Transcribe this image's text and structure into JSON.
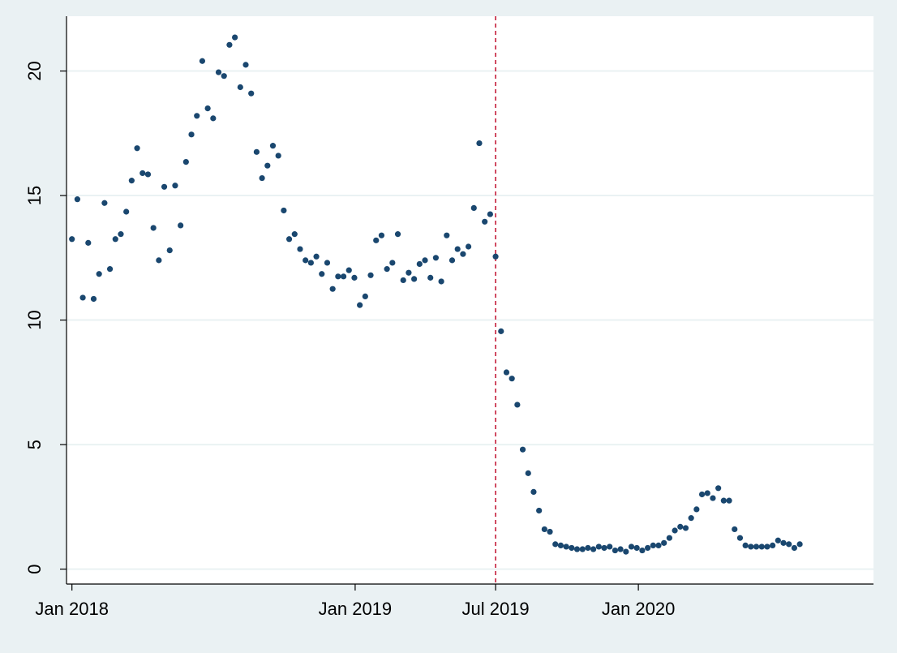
{
  "chart_data": {
    "type": "scatter",
    "title": "",
    "xlabel": "",
    "ylabel": "",
    "x_axis": {
      "type": "date",
      "range": [
        "2017-12-25",
        "2020-10-30"
      ],
      "ticks": [
        {
          "date": "2018-01-01",
          "label": "Jan 2018"
        },
        {
          "date": "2019-01-01",
          "label": "Jan 2019"
        },
        {
          "date": "2019-07-01",
          "label": "Jul 2019"
        },
        {
          "date": "2020-01-01",
          "label": "Jan 2020"
        }
      ]
    },
    "y_axis": {
      "range": [
        -0.6,
        22.2
      ],
      "ticks": [
        0,
        5,
        10,
        15,
        20
      ],
      "tick_labels": [
        "0",
        "5",
        "10",
        "15",
        "20"
      ],
      "grid": true,
      "tick_label_orientation": "vertical"
    },
    "reference_line": {
      "date": "2019-07-01",
      "style": "dashed",
      "color": "#c41e3a"
    },
    "marker_color": "#1a476f",
    "grid_color": "#eaf2f3",
    "plot_background": "#ffffff",
    "outer_background": "#eaf1f3",
    "points": [
      [
        "2018-01-01",
        13.25
      ],
      [
        "2018-01-08",
        14.85
      ],
      [
        "2018-01-15",
        10.9
      ],
      [
        "2018-01-22",
        13.1
      ],
      [
        "2018-01-29",
        10.85
      ],
      [
        "2018-02-05",
        11.85
      ],
      [
        "2018-02-12",
        14.7
      ],
      [
        "2018-02-19",
        12.05
      ],
      [
        "2018-02-26",
        13.25
      ],
      [
        "2018-03-05",
        13.45
      ],
      [
        "2018-03-12",
        14.35
      ],
      [
        "2018-03-19",
        15.6
      ],
      [
        "2018-03-26",
        16.9
      ],
      [
        "2018-04-02",
        15.9
      ],
      [
        "2018-04-09",
        15.85
      ],
      [
        "2018-04-16",
        13.7
      ],
      [
        "2018-04-23",
        12.4
      ],
      [
        "2018-04-30",
        15.35
      ],
      [
        "2018-05-07",
        12.8
      ],
      [
        "2018-05-14",
        15.4
      ],
      [
        "2018-05-21",
        13.8
      ],
      [
        "2018-05-28",
        16.35
      ],
      [
        "2018-06-04",
        17.45
      ],
      [
        "2018-06-11",
        18.2
      ],
      [
        "2018-06-18",
        20.4
      ],
      [
        "2018-06-25",
        18.5
      ],
      [
        "2018-07-02",
        18.1
      ],
      [
        "2018-07-09",
        19.95
      ],
      [
        "2018-07-16",
        19.8
      ],
      [
        "2018-07-23",
        21.05
      ],
      [
        "2018-07-30",
        21.35
      ],
      [
        "2018-08-06",
        19.35
      ],
      [
        "2018-08-13",
        20.25
      ],
      [
        "2018-08-20",
        19.1
      ],
      [
        "2018-08-27",
        16.75
      ],
      [
        "2018-09-03",
        15.7
      ],
      [
        "2018-09-10",
        16.2
      ],
      [
        "2018-09-17",
        17.0
      ],
      [
        "2018-09-24",
        16.6
      ],
      [
        "2018-10-01",
        14.4
      ],
      [
        "2018-10-08",
        13.25
      ],
      [
        "2018-10-15",
        13.45
      ],
      [
        "2018-10-22",
        12.85
      ],
      [
        "2018-10-29",
        12.4
      ],
      [
        "2018-11-05",
        12.3
      ],
      [
        "2018-11-12",
        12.55
      ],
      [
        "2018-11-19",
        11.85
      ],
      [
        "2018-11-26",
        12.3
      ],
      [
        "2018-12-03",
        11.25
      ],
      [
        "2018-12-10",
        11.75
      ],
      [
        "2018-12-17",
        11.75
      ],
      [
        "2018-12-24",
        12.0
      ],
      [
        "2018-12-31",
        11.7
      ],
      [
        "2019-01-07",
        10.6
      ],
      [
        "2019-01-14",
        10.95
      ],
      [
        "2019-01-21",
        11.8
      ],
      [
        "2019-01-28",
        13.2
      ],
      [
        "2019-02-04",
        13.4
      ],
      [
        "2019-02-11",
        12.05
      ],
      [
        "2019-02-18",
        12.3
      ],
      [
        "2019-02-25",
        13.45
      ],
      [
        "2019-03-04",
        11.6
      ],
      [
        "2019-03-11",
        11.9
      ],
      [
        "2019-03-18",
        11.65
      ],
      [
        "2019-03-25",
        12.25
      ],
      [
        "2019-04-01",
        12.4
      ],
      [
        "2019-04-08",
        11.7
      ],
      [
        "2019-04-15",
        12.5
      ],
      [
        "2019-04-22",
        11.55
      ],
      [
        "2019-04-29",
        13.4
      ],
      [
        "2019-05-06",
        12.4
      ],
      [
        "2019-05-13",
        12.85
      ],
      [
        "2019-05-20",
        12.65
      ],
      [
        "2019-05-27",
        12.95
      ],
      [
        "2019-06-03",
        14.5
      ],
      [
        "2019-06-10",
        17.1
      ],
      [
        "2019-06-17",
        13.95
      ],
      [
        "2019-06-24",
        14.25
      ],
      [
        "2019-07-01",
        12.55
      ],
      [
        "2019-07-08",
        9.55
      ],
      [
        "2019-07-15",
        7.9
      ],
      [
        "2019-07-22",
        7.65
      ],
      [
        "2019-07-29",
        6.6
      ],
      [
        "2019-08-05",
        4.8
      ],
      [
        "2019-08-12",
        3.85
      ],
      [
        "2019-08-19",
        3.1
      ],
      [
        "2019-08-26",
        2.35
      ],
      [
        "2019-09-02",
        1.6
      ],
      [
        "2019-09-09",
        1.5
      ],
      [
        "2019-09-16",
        1.0
      ],
      [
        "2019-09-23",
        0.95
      ],
      [
        "2019-09-30",
        0.9
      ],
      [
        "2019-10-07",
        0.85
      ],
      [
        "2019-10-14",
        0.8
      ],
      [
        "2019-10-21",
        0.8
      ],
      [
        "2019-10-28",
        0.85
      ],
      [
        "2019-11-04",
        0.8
      ],
      [
        "2019-11-11",
        0.9
      ],
      [
        "2019-11-18",
        0.85
      ],
      [
        "2019-11-25",
        0.9
      ],
      [
        "2019-12-02",
        0.75
      ],
      [
        "2019-12-09",
        0.8
      ],
      [
        "2019-12-16",
        0.7
      ],
      [
        "2019-12-23",
        0.9
      ],
      [
        "2019-12-30",
        0.85
      ],
      [
        "2020-01-06",
        0.75
      ],
      [
        "2020-01-13",
        0.85
      ],
      [
        "2020-01-20",
        0.95
      ],
      [
        "2020-01-27",
        0.95
      ],
      [
        "2020-02-03",
        1.05
      ],
      [
        "2020-02-10",
        1.25
      ],
      [
        "2020-02-17",
        1.55
      ],
      [
        "2020-02-24",
        1.7
      ],
      [
        "2020-03-02",
        1.65
      ],
      [
        "2020-03-09",
        2.05
      ],
      [
        "2020-03-16",
        2.4
      ],
      [
        "2020-03-23",
        3.0
      ],
      [
        "2020-03-30",
        3.05
      ],
      [
        "2020-04-06",
        2.85
      ],
      [
        "2020-04-13",
        3.25
      ],
      [
        "2020-04-20",
        2.75
      ],
      [
        "2020-04-27",
        2.75
      ],
      [
        "2020-05-04",
        1.6
      ],
      [
        "2020-05-11",
        1.25
      ],
      [
        "2020-05-18",
        0.95
      ],
      [
        "2020-05-25",
        0.9
      ],
      [
        "2020-06-01",
        0.9
      ],
      [
        "2020-06-08",
        0.9
      ],
      [
        "2020-06-15",
        0.9
      ],
      [
        "2020-06-22",
        0.95
      ],
      [
        "2020-06-29",
        1.15
      ],
      [
        "2020-07-06",
        1.05
      ],
      [
        "2020-07-13",
        1.0
      ],
      [
        "2020-07-20",
        0.85
      ],
      [
        "2020-07-27",
        1.0
      ]
    ]
  }
}
